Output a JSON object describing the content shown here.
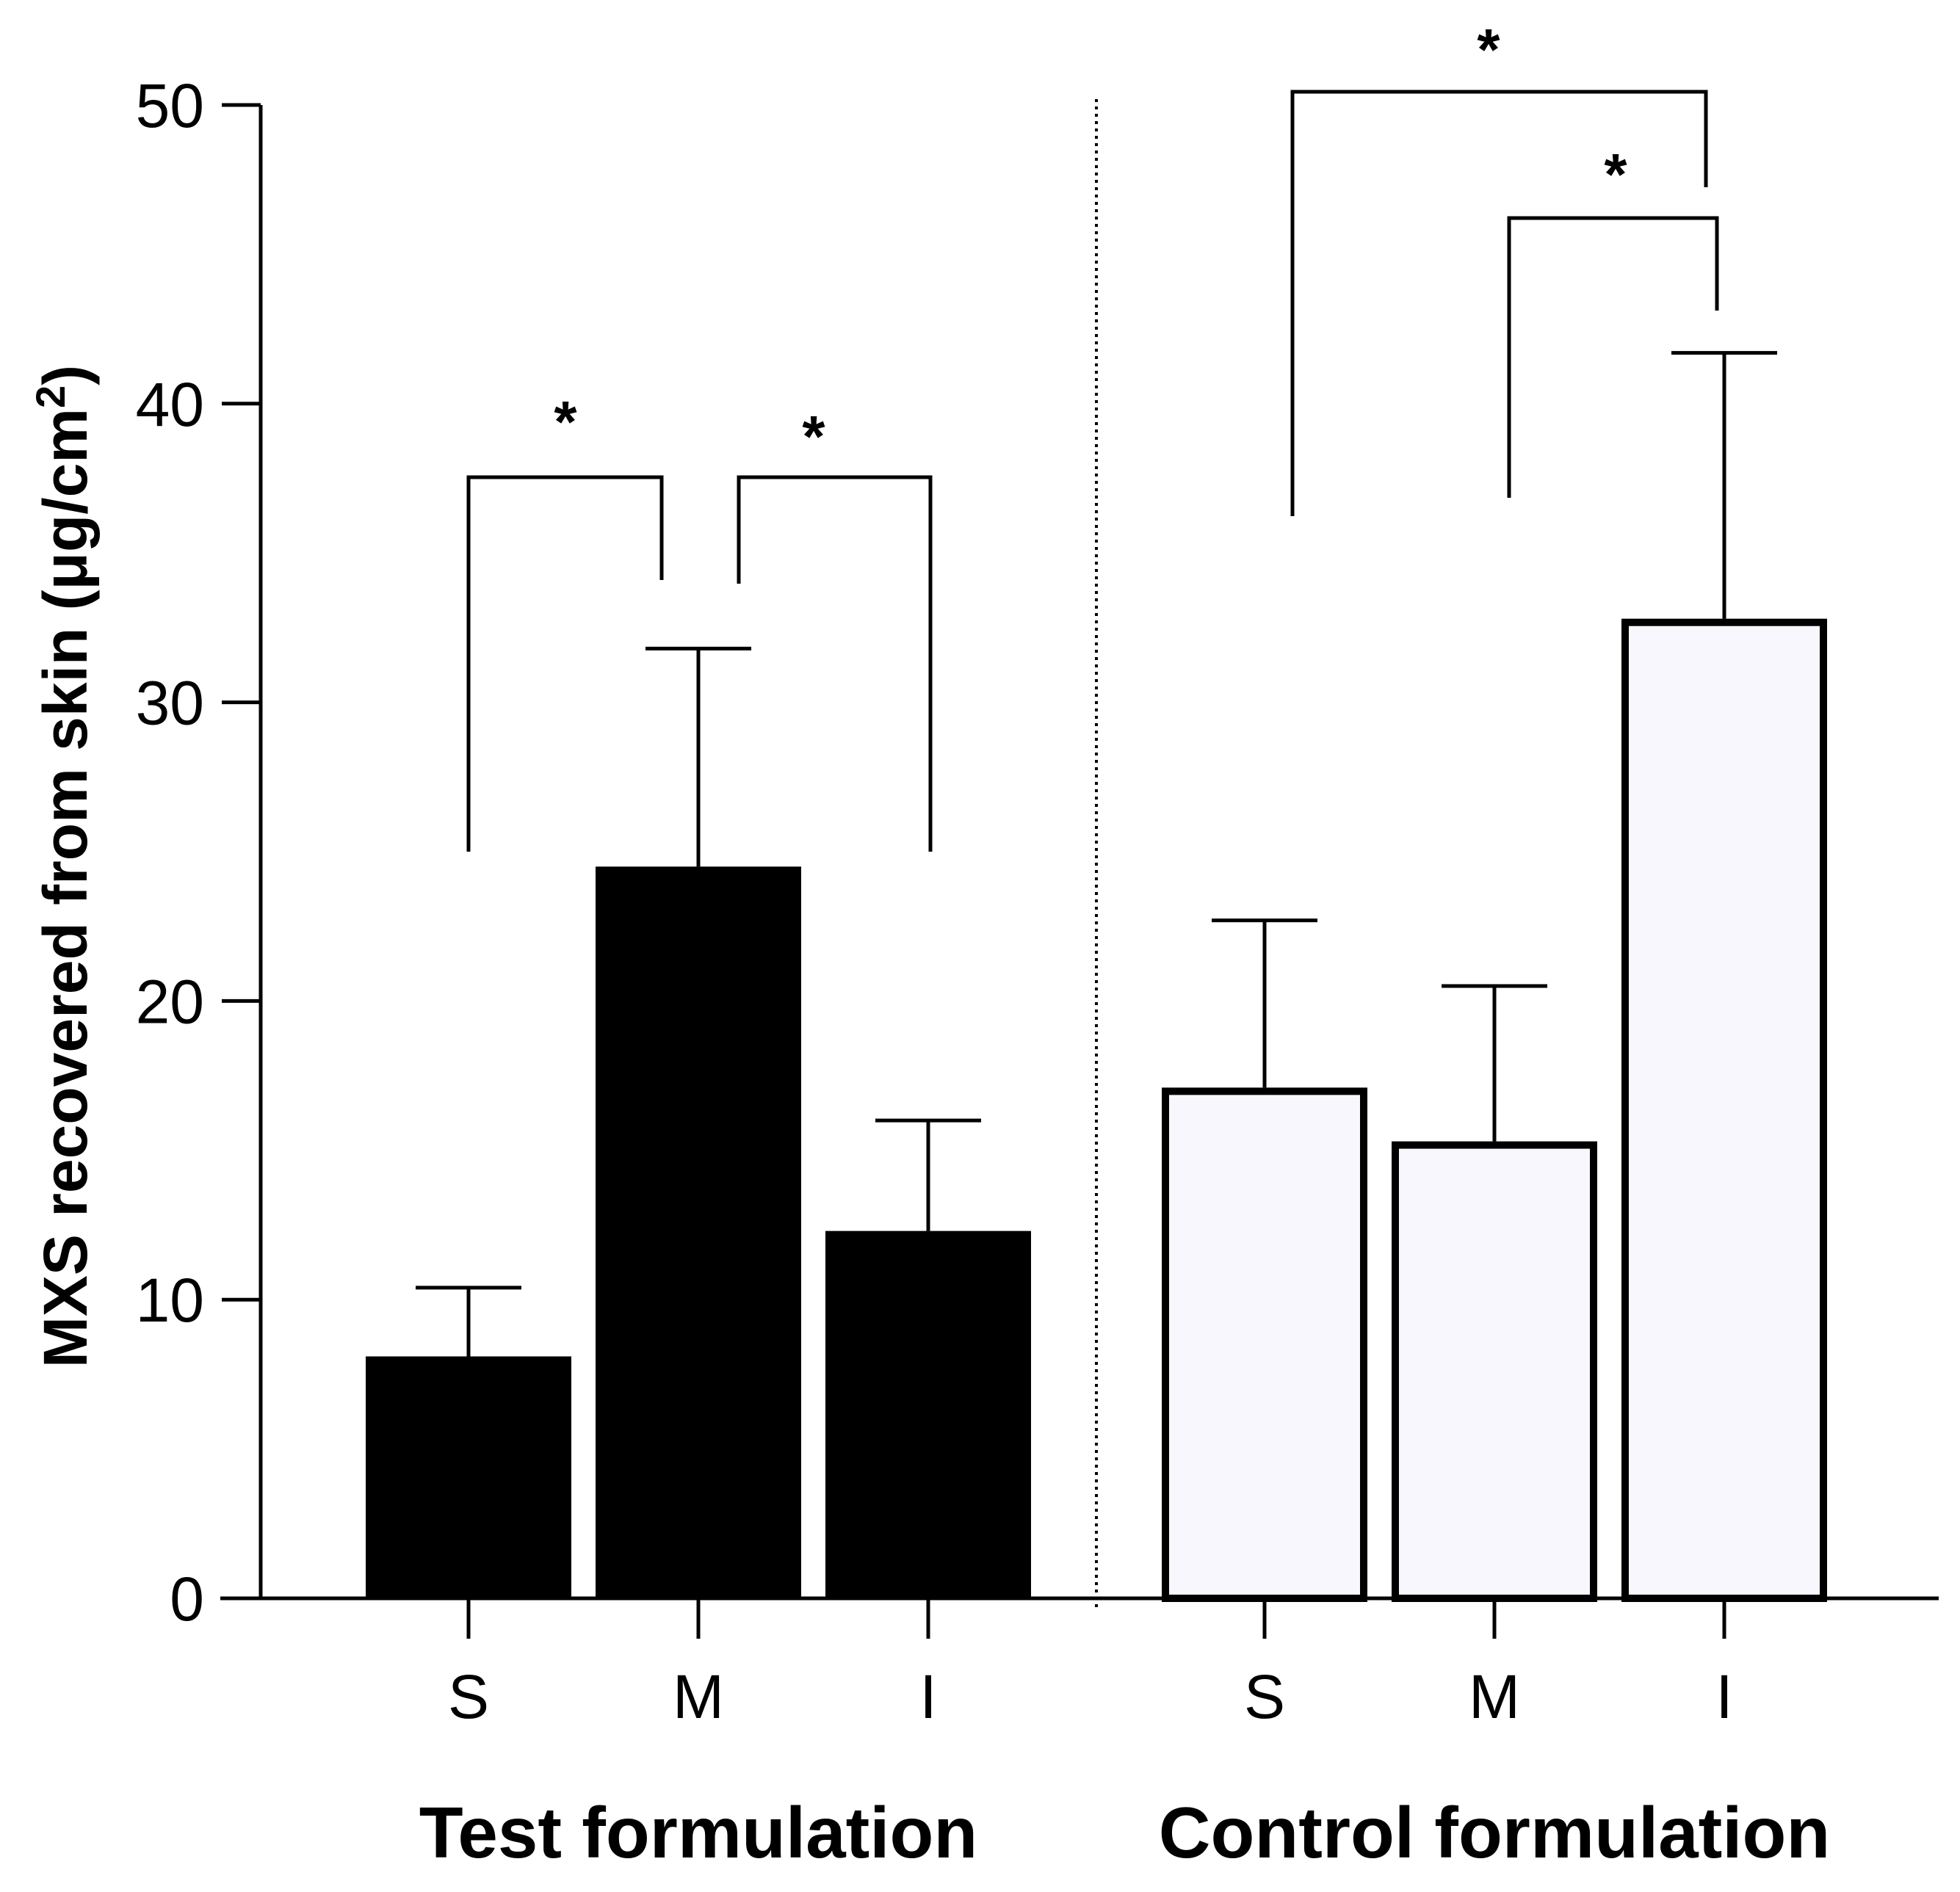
{
  "chart_data": {
    "type": "bar",
    "ylabel_main": "MXS recovered from skin (μg/cm",
    "ylabel_sup": "2",
    "ylabel_close": ")",
    "ylim": [
      0,
      50
    ],
    "yticks": [
      0,
      10,
      20,
      30,
      40,
      50
    ],
    "groups": [
      {
        "name": "Test formulation",
        "fill": "#000000",
        "bars": [
          {
            "label": "S",
            "value": 8.1,
            "error": 2.3
          },
          {
            "label": "M",
            "value": 24.5,
            "error": 7.3
          },
          {
            "label": "I",
            "value": 12.3,
            "error": 3.7
          }
        ]
      },
      {
        "name": "Control formulation",
        "fill": "#f7f7fd",
        "bars": [
          {
            "label": "S",
            "value": 17.1,
            "error": 5.6
          },
          {
            "label": "M",
            "value": 15.3,
            "error": 5.2
          },
          {
            "label": "I",
            "value": 32.8,
            "error": 8.9
          }
        ]
      }
    ],
    "significance": [
      {
        "group": 0,
        "from": 0,
        "to": 1,
        "label": "*"
      },
      {
        "group": 0,
        "from": 1,
        "to": 2,
        "label": "*"
      },
      {
        "group": 1,
        "from": 0,
        "to": 2,
        "label": "*"
      },
      {
        "group": 1,
        "from": 1,
        "to": 2,
        "label": "*"
      }
    ],
    "separator": "dotted vertical line between groups"
  }
}
